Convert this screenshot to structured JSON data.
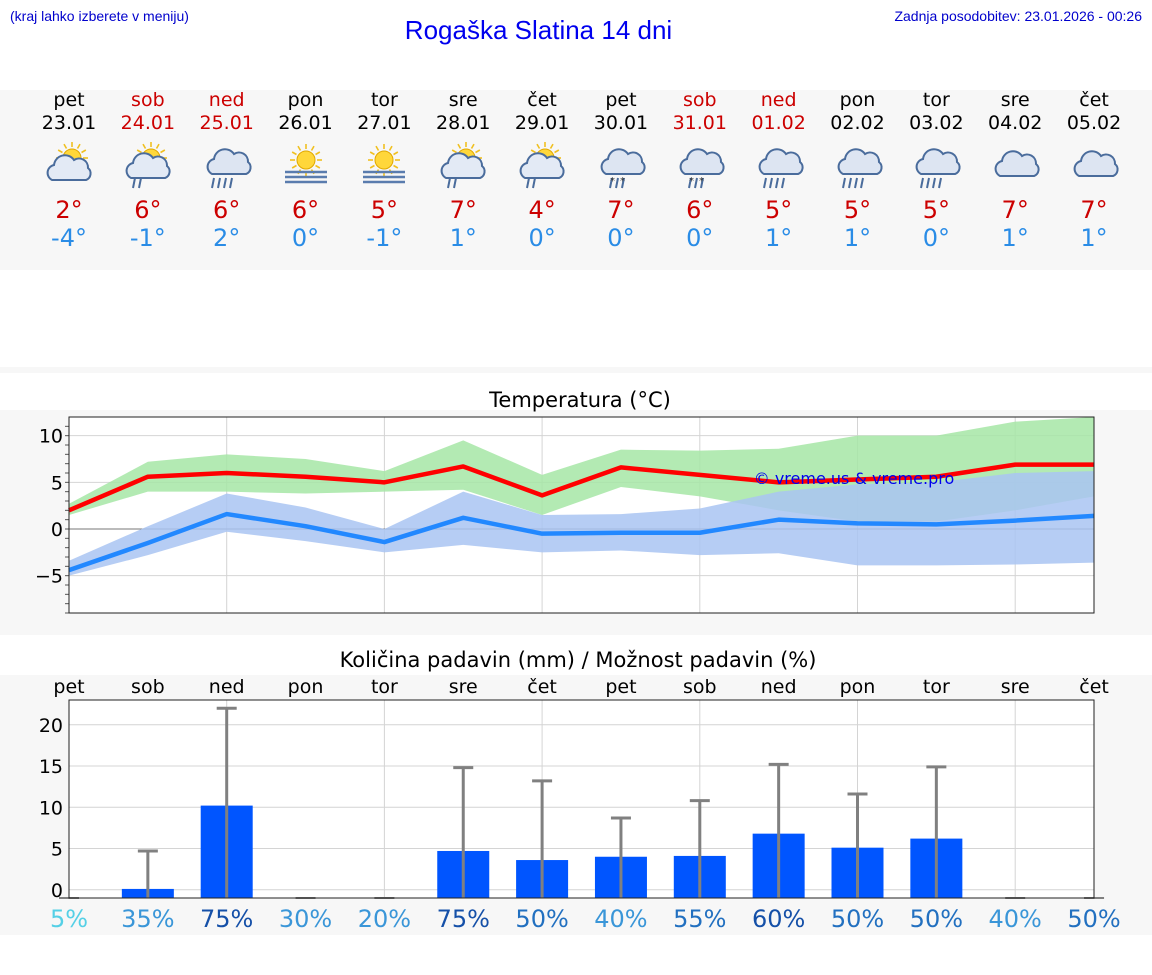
{
  "header": {
    "note": "(kraj lahko izberete v meniju)",
    "title": "Rogaška Slatina 14 dni",
    "updated": "Zadnja posodobitev: 23.01.2026 - 00:26"
  },
  "colors": {
    "weekday": "#000000",
    "weekend": "#cc0000",
    "tmax": "#cc0000",
    "tmin": "#2a8ce6",
    "maxLine": "#ff0000",
    "minLine": "#2288ff",
    "maxBand": "#a6e6a6",
    "minBand": "#a9c4f2",
    "bar": "#0055ff",
    "whisker": "#808080",
    "copyright": "#0000ee"
  },
  "days": [
    {
      "name": "pet",
      "date": "23.01",
      "weekend": false,
      "icon": "partly-cloudy-sun-icon",
      "tmax": "2°",
      "tmin": "-4°"
    },
    {
      "name": "sob",
      "date": "24.01",
      "weekend": true,
      "icon": "sun-cloud-rain-icon",
      "tmax": "6°",
      "tmin": "-1°"
    },
    {
      "name": "ned",
      "date": "25.01",
      "weekend": true,
      "icon": "cloud-heavy-rain-icon",
      "tmax": "6°",
      "tmin": "2°"
    },
    {
      "name": "pon",
      "date": "26.01",
      "weekend": false,
      "icon": "sun-fog-icon",
      "tmax": "6°",
      "tmin": "0°"
    },
    {
      "name": "tor",
      "date": "27.01",
      "weekend": false,
      "icon": "sun-fog-icon",
      "tmax": "5°",
      "tmin": "-1°"
    },
    {
      "name": "sre",
      "date": "28.01",
      "weekend": false,
      "icon": "sun-cloud-rain-icon",
      "tmax": "7°",
      "tmin": "1°"
    },
    {
      "name": "čet",
      "date": "29.01",
      "weekend": false,
      "icon": "sun-cloud-rain-icon",
      "tmax": "4°",
      "tmin": "0°"
    },
    {
      "name": "pet",
      "date": "30.01",
      "weekend": false,
      "icon": "cloud-sleet-icon",
      "tmax": "7°",
      "tmin": "0°"
    },
    {
      "name": "sob",
      "date": "31.01",
      "weekend": true,
      "icon": "cloud-sleet-icon",
      "tmax": "6°",
      "tmin": "0°"
    },
    {
      "name": "ned",
      "date": "01.02",
      "weekend": true,
      "icon": "cloud-heavy-rain-icon",
      "tmax": "5°",
      "tmin": "1°"
    },
    {
      "name": "pon",
      "date": "02.02",
      "weekend": false,
      "icon": "cloud-heavy-rain-icon",
      "tmax": "5°",
      "tmin": "1°"
    },
    {
      "name": "tor",
      "date": "03.02",
      "weekend": false,
      "icon": "cloud-heavy-rain-icon",
      "tmax": "5°",
      "tmin": "0°"
    },
    {
      "name": "sre",
      "date": "04.02",
      "weekend": false,
      "icon": "cloud-icon",
      "tmax": "7°",
      "tmin": "1°"
    },
    {
      "name": "čet",
      "date": "05.02",
      "weekend": false,
      "icon": "cloud-icon",
      "tmax": "7°",
      "tmin": "1°"
    }
  ],
  "chart_data": [
    {
      "type": "line",
      "title": "Temperatura (°C)",
      "xlabel": "",
      "ylabel": "",
      "ylim": [
        -9,
        12
      ],
      "yticks": [
        -5,
        0,
        5,
        10
      ],
      "ytick_labels": [
        "−5",
        "0",
        "5",
        "10"
      ],
      "grid": true,
      "annotation": "© vreme.us & vreme.pro",
      "x": [
        0,
        1,
        2,
        3,
        4,
        5,
        6,
        7,
        8,
        9,
        10,
        11,
        12,
        13
      ],
      "series": [
        {
          "name": "max",
          "values": [
            2,
            5.6,
            6,
            5.6,
            5,
            6.7,
            3.6,
            6.6,
            5.8,
            5,
            5.3,
            5.6,
            6.9,
            6.9
          ]
        },
        {
          "name": "max_low",
          "values": [
            1.5,
            4,
            4,
            3.8,
            4,
            4.2,
            1.5,
            4.5,
            3.5,
            2,
            0.8,
            0.8,
            2,
            3.5
          ]
        },
        {
          "name": "max_high",
          "values": [
            2.7,
            7.2,
            8,
            7.5,
            6.2,
            9.5,
            5.8,
            8.5,
            8.4,
            8.6,
            10,
            10,
            11.5,
            12
          ]
        },
        {
          "name": "min",
          "values": [
            -4.4,
            -1.5,
            1.6,
            0.3,
            -1.4,
            1.2,
            -0.5,
            -0.4,
            -0.4,
            1,
            0.6,
            0.5,
            0.9,
            1.4
          ]
        },
        {
          "name": "min_low",
          "values": [
            -5,
            -2.8,
            -0.3,
            -1.3,
            -2.5,
            -1.7,
            -2.5,
            -2.3,
            -2.8,
            -2.6,
            -3.9,
            -3.9,
            -3.8,
            -3.6
          ]
        },
        {
          "name": "min_high",
          "values": [
            -3.4,
            0.3,
            3.8,
            2.3,
            0,
            4,
            1.5,
            1.6,
            2.2,
            4,
            4.8,
            5,
            6,
            6.2
          ]
        }
      ]
    },
    {
      "type": "bar",
      "title": "Količina padavin (mm) / Možnost padavin (%)",
      "categories": [
        "pet",
        "sob",
        "ned",
        "pon",
        "tor",
        "sre",
        "čet",
        "pet",
        "sob",
        "ned",
        "pon",
        "tor",
        "sre",
        "čet"
      ],
      "ylim": [
        -1,
        23
      ],
      "yticks": [
        0,
        5,
        10,
        15,
        20
      ],
      "ytick_labels": [
        "0",
        "5",
        "10",
        "15",
        "20"
      ],
      "grid": true,
      "values": [
        0,
        0.1,
        10.2,
        0,
        0,
        4.7,
        3.6,
        4,
        4.1,
        6.8,
        5.1,
        6.2,
        0,
        0
      ],
      "upper": [
        0,
        4.7,
        22,
        0,
        0,
        14.8,
        13.2,
        8.7,
        10.8,
        15.2,
        11.6,
        14.9,
        0,
        0
      ],
      "chance": [
        "5%",
        "35%",
        "75%",
        "30%",
        "20%",
        "75%",
        "50%",
        "40%",
        "55%",
        "60%",
        "50%",
        "50%",
        "40%",
        "50%"
      ],
      "chance_values": [
        5,
        35,
        75,
        30,
        20,
        75,
        50,
        40,
        55,
        60,
        50,
        50,
        40,
        50
      ]
    }
  ]
}
